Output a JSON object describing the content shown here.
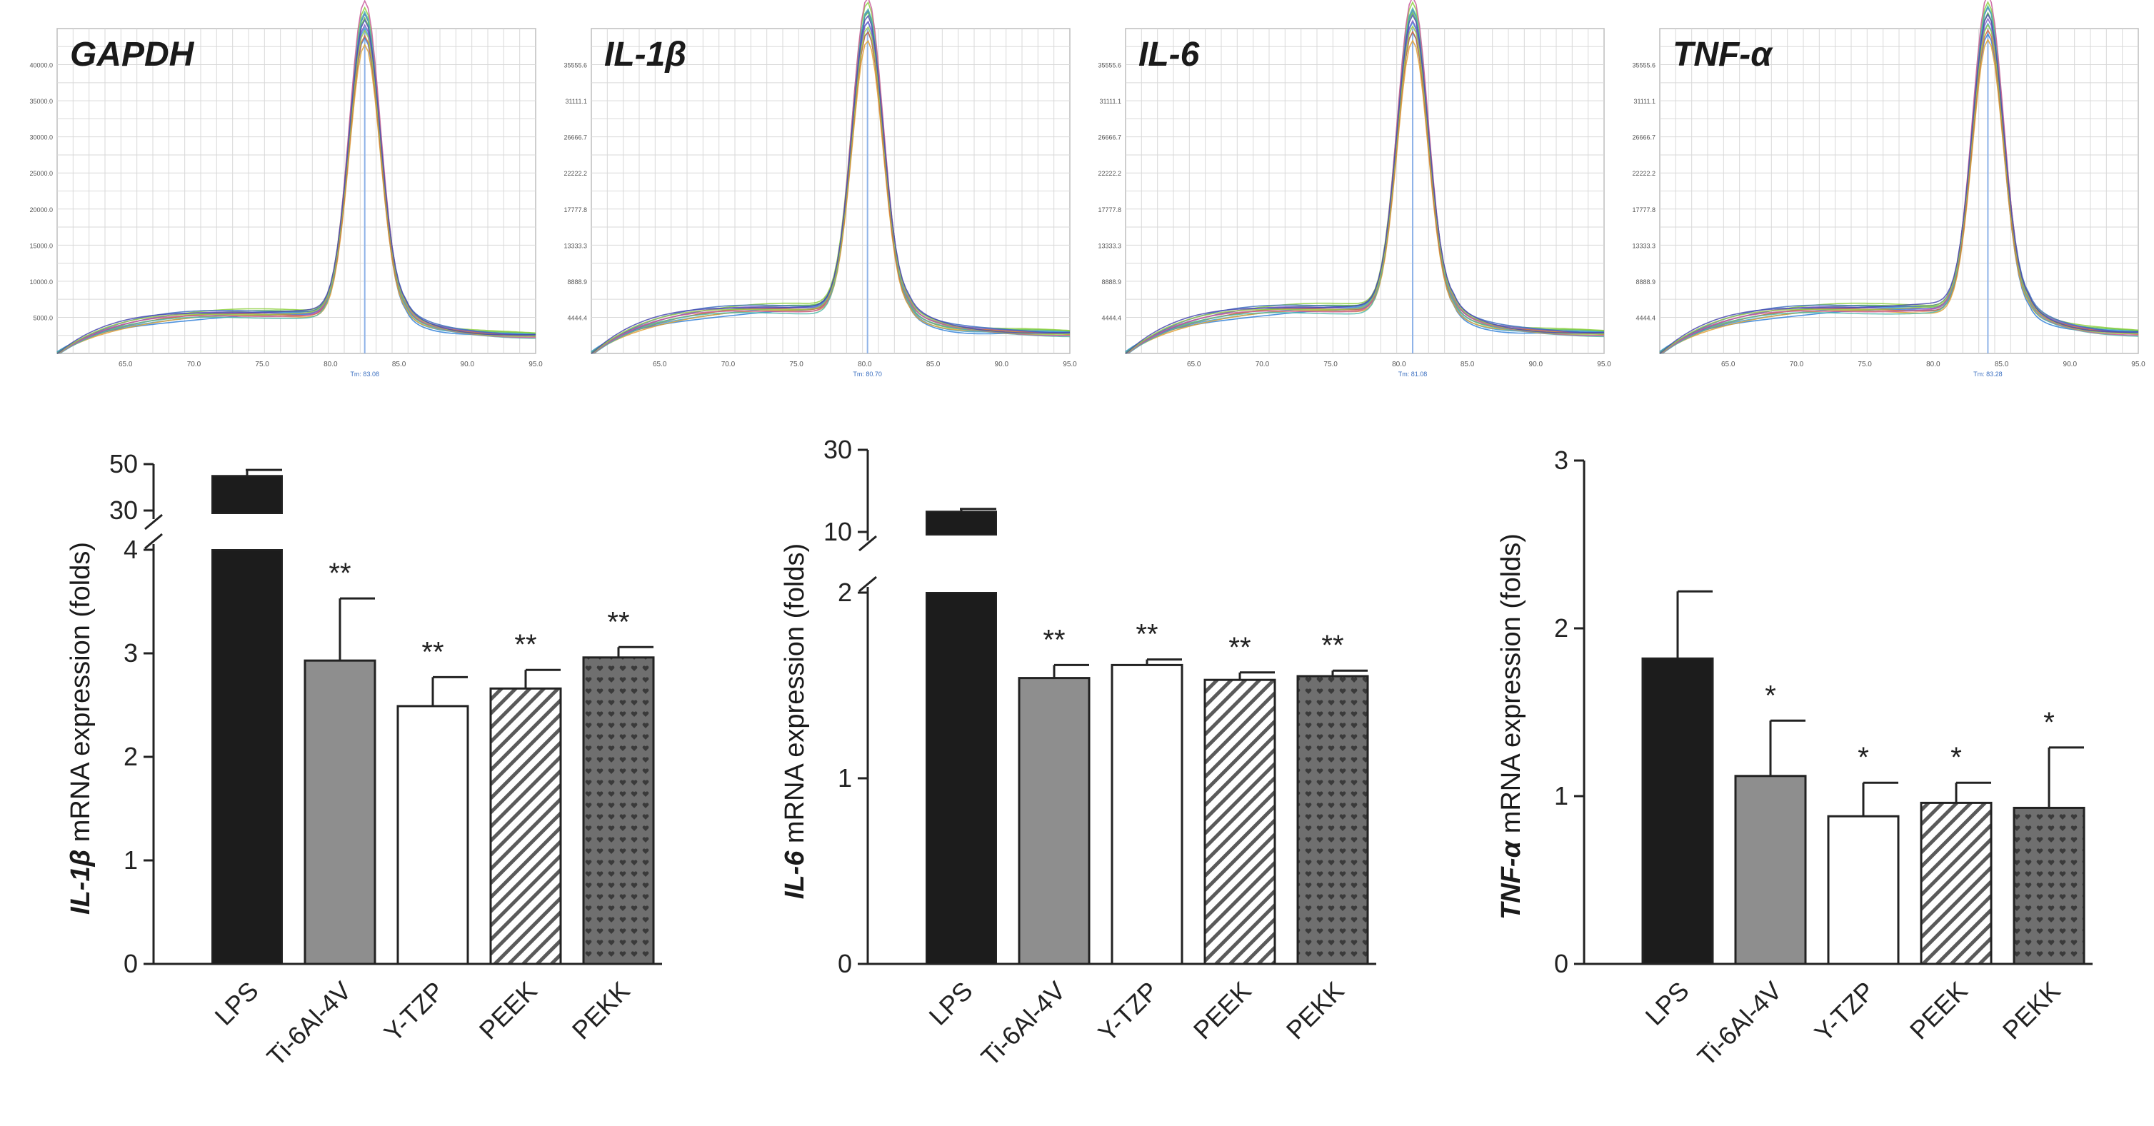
{
  "melt_panels": [
    {
      "gene": "GAPDH",
      "peak": 82.5,
      "ymax": 45000,
      "xticks": [
        "65.0",
        "70.0",
        "75.0",
        "80.0",
        "85.0",
        "90.0",
        "95.0"
      ],
      "tm_label": "Tm: 83.08"
    },
    {
      "gene": "IL-1β",
      "peak": 80.2,
      "ymax": 40000,
      "xticks": [
        "65.0",
        "70.0",
        "75.0",
        "80.0",
        "85.0",
        "90.0",
        "95.0"
      ],
      "tm_label": "Tm: 80.70"
    },
    {
      "gene": "IL-6",
      "peak": 81.0,
      "ymax": 40000,
      "xticks": [
        "65.0",
        "70.0",
        "75.0",
        "80.0",
        "85.0",
        "90.0",
        "95.0"
      ],
      "tm_label": "Tm: 81.08"
    },
    {
      "gene": "TNF-α",
      "peak": 84.0,
      "ymax": 40000,
      "xticks": [
        "65.0",
        "70.0",
        "75.0",
        "80.0",
        "85.0",
        "90.0",
        "95.0"
      ],
      "tm_label": "Tm: 83.28"
    }
  ],
  "chart_data": [
    {
      "type": "bar",
      "title": "",
      "ylabel_gene": "IL-1β",
      "ylabel_rest": " mRNA expression (folds)",
      "categories": [
        "LPS",
        "Ti-6Al-4V",
        "Y-TZP",
        "PEEK",
        "PEKK"
      ],
      "values": [
        45,
        2.93,
        2.49,
        2.66,
        2.96
      ],
      "errors": [
        2.5,
        0.6,
        0.28,
        0.18,
        0.1
      ],
      "significance": [
        "",
        "**",
        "**",
        "**",
        "**"
      ],
      "ylim_lower": [
        0,
        4
      ],
      "yticks_lower": [
        "0",
        "1",
        "2",
        "3",
        "4"
      ],
      "ylim_upper": [
        30,
        50
      ],
      "yticks_upper": [
        "30",
        "50"
      ],
      "broken_axis": true
    },
    {
      "type": "bar",
      "title": "",
      "ylabel_gene": "IL-6",
      "ylabel_rest": " mRNA expression (folds)",
      "categories": [
        "LPS",
        "Ti-6Al-4V",
        "Y-TZP",
        "PEEK",
        "PEKK"
      ],
      "values": [
        15,
        1.54,
        1.61,
        1.53,
        1.55
      ],
      "errors": [
        0.6,
        0.07,
        0.03,
        0.04,
        0.03
      ],
      "significance": [
        "",
        "**",
        "**",
        "**",
        "**"
      ],
      "ylim_lower": [
        0,
        2
      ],
      "yticks_lower": [
        "0",
        "1",
        "2"
      ],
      "ylim_upper": [
        10,
        30
      ],
      "yticks_upper": [
        "10",
        "30"
      ],
      "broken_axis": true
    },
    {
      "type": "bar",
      "title": "",
      "ylabel_gene": "TNF-α",
      "ylabel_rest": " mRNA expression (folds)",
      "categories": [
        "LPS",
        "Ti-6Al-4V",
        "Y-TZP",
        "PEEK",
        "PEKK"
      ],
      "values": [
        1.82,
        1.12,
        0.88,
        0.96,
        0.93
      ],
      "errors": [
        0.4,
        0.33,
        0.2,
        0.12,
        0.36
      ],
      "significance": [
        "",
        "*",
        "*",
        "*",
        "*"
      ],
      "ylim": [
        0,
        3
      ],
      "yticks": [
        "0",
        "1",
        "2",
        "3"
      ],
      "broken_axis": false
    }
  ],
  "colors": {
    "lps": "#1c1c1c",
    "ti": "#8e8e8e",
    "ytzp": "#ffffff",
    "peek_stripe": "#5a5a5a",
    "pekk": "#6f6f6f",
    "melt_grid": "#d9d9d9",
    "melt_line": "#8fb3e8"
  }
}
